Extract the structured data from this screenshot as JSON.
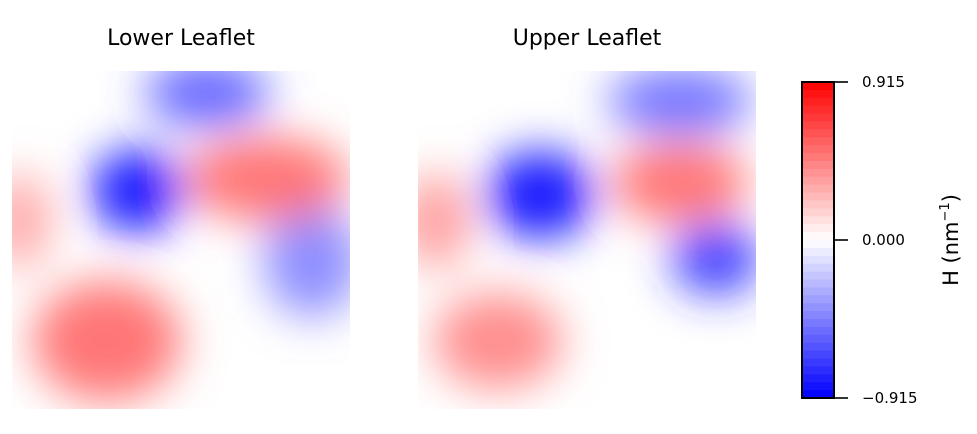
{
  "chart_data": [
    {
      "type": "heatmap",
      "title": "Lower Leaflet",
      "colormap": "bwr",
      "vmin": -0.915,
      "vmax": 0.915,
      "features": [
        {
          "value": -0.915,
          "desc": "strong blue spot at upper-left of center"
        },
        {
          "value": -0.6,
          "desc": "blue lobe near top center"
        },
        {
          "value": -0.45,
          "desc": "blue patch at right edge"
        },
        {
          "value": 0.55,
          "desc": "red ridge at upper right"
        },
        {
          "value": 0.55,
          "desc": "red region at lower left"
        },
        {
          "value": 0.35,
          "desc": "red at left edge"
        }
      ]
    },
    {
      "type": "heatmap",
      "title": "Upper Leaflet",
      "colormap": "bwr",
      "vmin": -0.915,
      "vmax": 0.915,
      "features": [
        {
          "value": -0.915,
          "desc": "strong blue spot at left-center"
        },
        {
          "value": -0.75,
          "desc": "blue spot at right"
        },
        {
          "value": -0.55,
          "desc": "blue at top right"
        },
        {
          "value": 0.55,
          "desc": "red region at center-right"
        },
        {
          "value": 0.45,
          "desc": "red region at lower left"
        },
        {
          "value": 0.4,
          "desc": "red at left edge"
        }
      ]
    }
  ],
  "colorbar": {
    "label_main": "H (nm",
    "label_sup": "−1",
    "label_close": ")",
    "ticks": [
      {
        "value": 0.915,
        "label": "0.915"
      },
      {
        "value": 0.0,
        "label": "0.000"
      },
      {
        "value": -0.915,
        "label": "−0.915"
      }
    ],
    "colors": {
      "low": "#0000ff",
      "mid": "#ffffff",
      "high": "#ff0000"
    }
  }
}
